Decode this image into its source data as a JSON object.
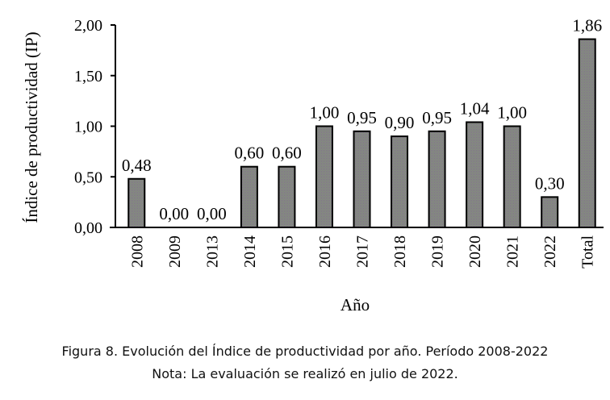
{
  "chart_data": {
    "type": "bar",
    "title": "",
    "xlabel": "Año",
    "ylabel": "Índice de productividad (IP)",
    "categories": [
      "2008",
      "2009",
      "2013",
      "2014",
      "2015",
      "2016",
      "2017",
      "2018",
      "2019",
      "2020",
      "2021",
      "2022",
      "Total"
    ],
    "values": [
      0.48,
      0.0,
      0.0,
      0.6,
      0.6,
      1.0,
      0.95,
      0.9,
      0.95,
      1.04,
      1.0,
      0.3,
      1.86
    ],
    "data_labels": [
      "0,48",
      "0,00",
      "0,00",
      "0,60",
      "0,60",
      "1,00",
      "0,95",
      "0,90",
      "0,95",
      "1,04",
      "1,00",
      "0,30",
      "1,86"
    ],
    "ylim": [
      0,
      2
    ],
    "yticks": [
      "0,00",
      "0,50",
      "1,00",
      "1,50",
      "2,00"
    ],
    "grid": false,
    "bar_color": "#8a8784"
  },
  "caption": {
    "line1": "Figura 8. Evolución del Índice de productividad por año. Período 2008-2022",
    "line2": "Nota: La evaluación se realizó en julio de 2022."
  }
}
